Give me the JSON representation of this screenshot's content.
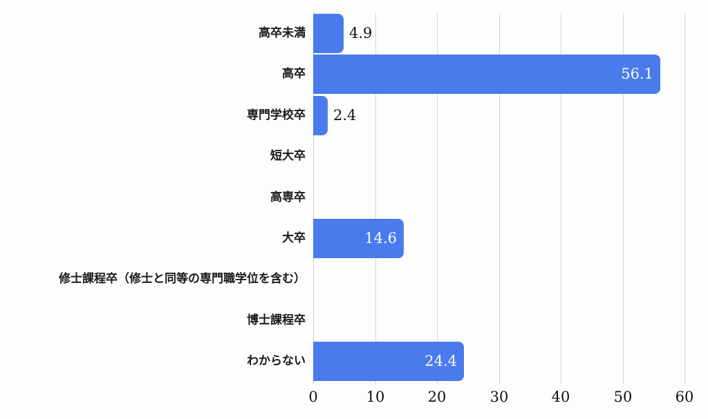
{
  "chart_data": {
    "type": "bar",
    "orientation": "horizontal",
    "title": "",
    "xlabel": "",
    "ylabel": "",
    "categories": [
      "高卒未満",
      "高卒",
      "専門学校卒",
      "短大卒",
      "高専卒",
      "大卒",
      "修士課程卒（修士と同等の専門職学位を含む）",
      "博士課程卒",
      "わからない"
    ],
    "values": [
      4.9,
      56.1,
      2.4,
      0,
      0,
      14.6,
      0,
      0,
      24.4
    ],
    "value_labels": [
      "4.9",
      "56.1",
      "2.4",
      "",
      "",
      "14.6",
      "",
      "",
      "24.4"
    ],
    "xlim": [
      0,
      60
    ],
    "xticks": [
      0,
      10,
      20,
      30,
      40,
      50,
      60
    ],
    "xtick_labels": [
      "0",
      "10",
      "20",
      "30",
      "40",
      "50",
      "60"
    ],
    "grid": true,
    "legend": null,
    "bar_color": "#4a7bed"
  }
}
